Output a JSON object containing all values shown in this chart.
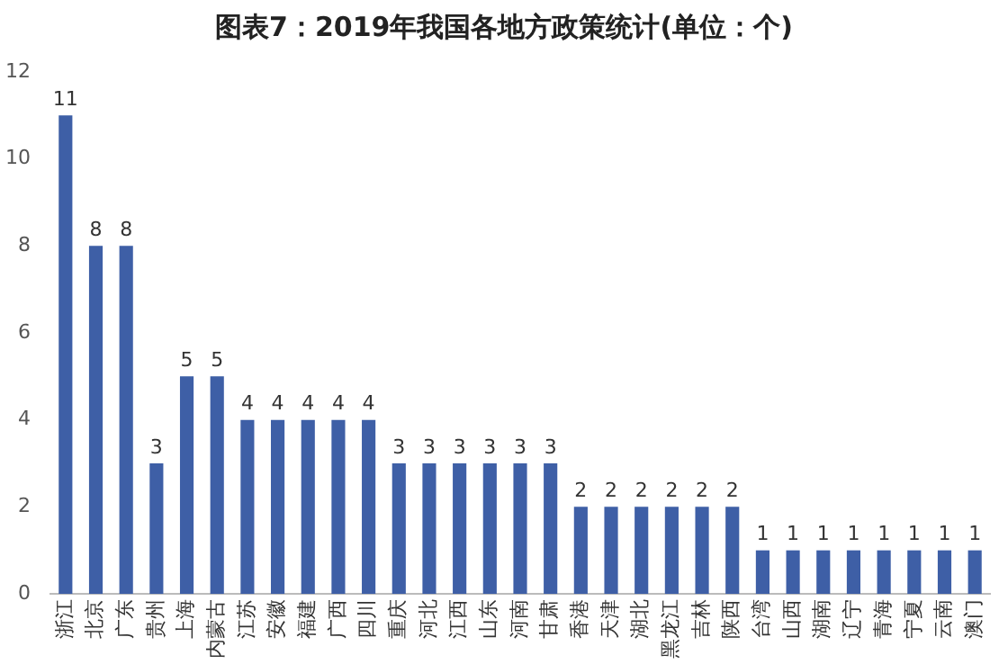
{
  "chart_data": {
    "type": "bar",
    "title": "图表7：2019年我国各地方政策统计(单位：个)",
    "categories": [
      "浙江",
      "北京",
      "广东",
      "贵州",
      "上海",
      "内蒙古",
      "江苏",
      "安徽",
      "福建",
      "广西",
      "四川",
      "重庆",
      "河北",
      "江西",
      "山东",
      "河南",
      "甘肃",
      "香港",
      "天津",
      "湖北",
      "黑龙江",
      "吉林",
      "陕西",
      "台湾",
      "山西",
      "湖南",
      "辽宁",
      "青海",
      "宁夏",
      "云南",
      "澳门"
    ],
    "values": [
      11,
      8,
      8,
      3,
      5,
      5,
      4,
      4,
      4,
      4,
      4,
      3,
      3,
      3,
      3,
      3,
      3,
      2,
      2,
      2,
      2,
      2,
      2,
      1,
      1,
      1,
      1,
      1,
      1,
      1,
      1
    ],
    "color": "#3e5fa6",
    "ylim": [
      0,
      12
    ],
    "yticks": [
      0,
      2,
      4,
      6,
      8,
      10,
      12
    ],
    "grid": false,
    "legend": false,
    "data_labels": true
  }
}
